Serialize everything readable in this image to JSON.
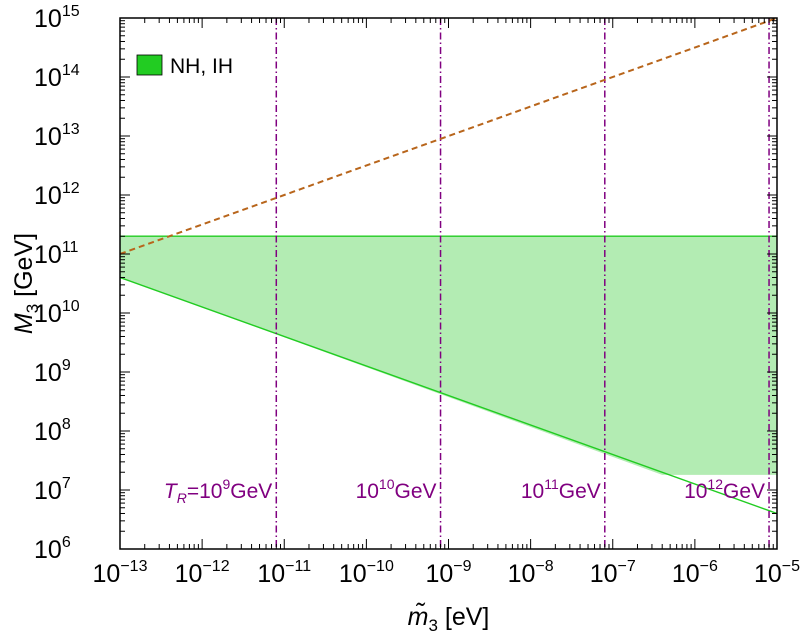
{
  "chart_data": {
    "type": "area",
    "x_scale": "log",
    "y_scale": "log",
    "xlim": [
      1e-13,
      1e-05
    ],
    "ylim": [
      1000000.0,
      1000000000000000.0
    ],
    "xlabel": {
      "symbol": "m̃",
      "sub": "3",
      "unit": " [eV]"
    },
    "ylabel": {
      "symbol": "M",
      "sub": "3",
      "unit": " [GeV]"
    },
    "x_ticks": [
      {
        "value": 1e-13,
        "base": "10",
        "exp": "−13"
      },
      {
        "value": 1e-12,
        "base": "10",
        "exp": "−12"
      },
      {
        "value": 1e-11,
        "base": "10",
        "exp": "−11"
      },
      {
        "value": 1e-10,
        "base": "10",
        "exp": "−10"
      },
      {
        "value": 1e-09,
        "base": "10",
        "exp": "−9"
      },
      {
        "value": 1e-08,
        "base": "10",
        "exp": "−8"
      },
      {
        "value": 1e-07,
        "base": "10",
        "exp": "−7"
      },
      {
        "value": 1e-06,
        "base": "10",
        "exp": "−6"
      },
      {
        "value": 1e-05,
        "base": "10",
        "exp": "−5"
      }
    ],
    "y_ticks": [
      {
        "value": 1000000.0,
        "base": "10",
        "exp": "6"
      },
      {
        "value": 10000000.0,
        "base": "10",
        "exp": "7"
      },
      {
        "value": 100000000.0,
        "base": "10",
        "exp": "8"
      },
      {
        "value": 1000000000.0,
        "base": "10",
        "exp": "9"
      },
      {
        "value": 10000000000.0,
        "base": "10",
        "exp": "10"
      },
      {
        "value": 100000000000.0,
        "base": "10",
        "exp": "11"
      },
      {
        "value": 1000000000000.0,
        "base": "10",
        "exp": "12"
      },
      {
        "value": 10000000000000.0,
        "base": "10",
        "exp": "13"
      },
      {
        "value": 100000000000000.0,
        "base": "10",
        "exp": "14"
      },
      {
        "value": 1000000000000000.0,
        "base": "10",
        "exp": "15"
      }
    ],
    "legend": {
      "placement": "top-left",
      "entries": [
        {
          "label": "NH, IH",
          "color": "#22cc22"
        }
      ]
    },
    "region": {
      "name": "NH, IH",
      "fill": "#b3ecb3",
      "edge": "#22cc22",
      "upper": [
        [
          1e-13,
          200000000000.0
        ],
        [
          1e-05,
          200000000000.0
        ]
      ],
      "lower": [
        [
          1e-13,
          40000000000.0
        ],
        [
          4e-07,
          18000000.0
        ],
        [
          1e-05,
          18000000.0
        ]
      ],
      "lower_edge_line": [
        [
          1e-13,
          40000000000.0
        ],
        [
          1e-05,
          4000000.0
        ]
      ]
    },
    "dashed_line": {
      "color": "#b8651b",
      "points": [
        [
          1e-13,
          100000000000.0
        ],
        [
          1e-05,
          1000000000000000.0
        ]
      ]
    },
    "tr_lines": {
      "color": "#800080",
      "items": [
        {
          "x": 8e-12,
          "prefix": "T",
          "sub": "R",
          "mid": "=",
          "base": "10",
          "exp": "9",
          "unit": "GeV"
        },
        {
          "x": 8e-10,
          "prefix": "",
          "sub": "",
          "mid": "",
          "base": "10",
          "exp": "10",
          "unit": "GeV"
        },
        {
          "x": 8e-08,
          "prefix": "",
          "sub": "",
          "mid": "",
          "base": "10",
          "exp": "11",
          "unit": "GeV"
        },
        {
          "x": 8e-06,
          "prefix": "",
          "sub": "",
          "mid": "",
          "base": "10",
          "exp": "12",
          "unit": "GeV"
        }
      ]
    }
  }
}
